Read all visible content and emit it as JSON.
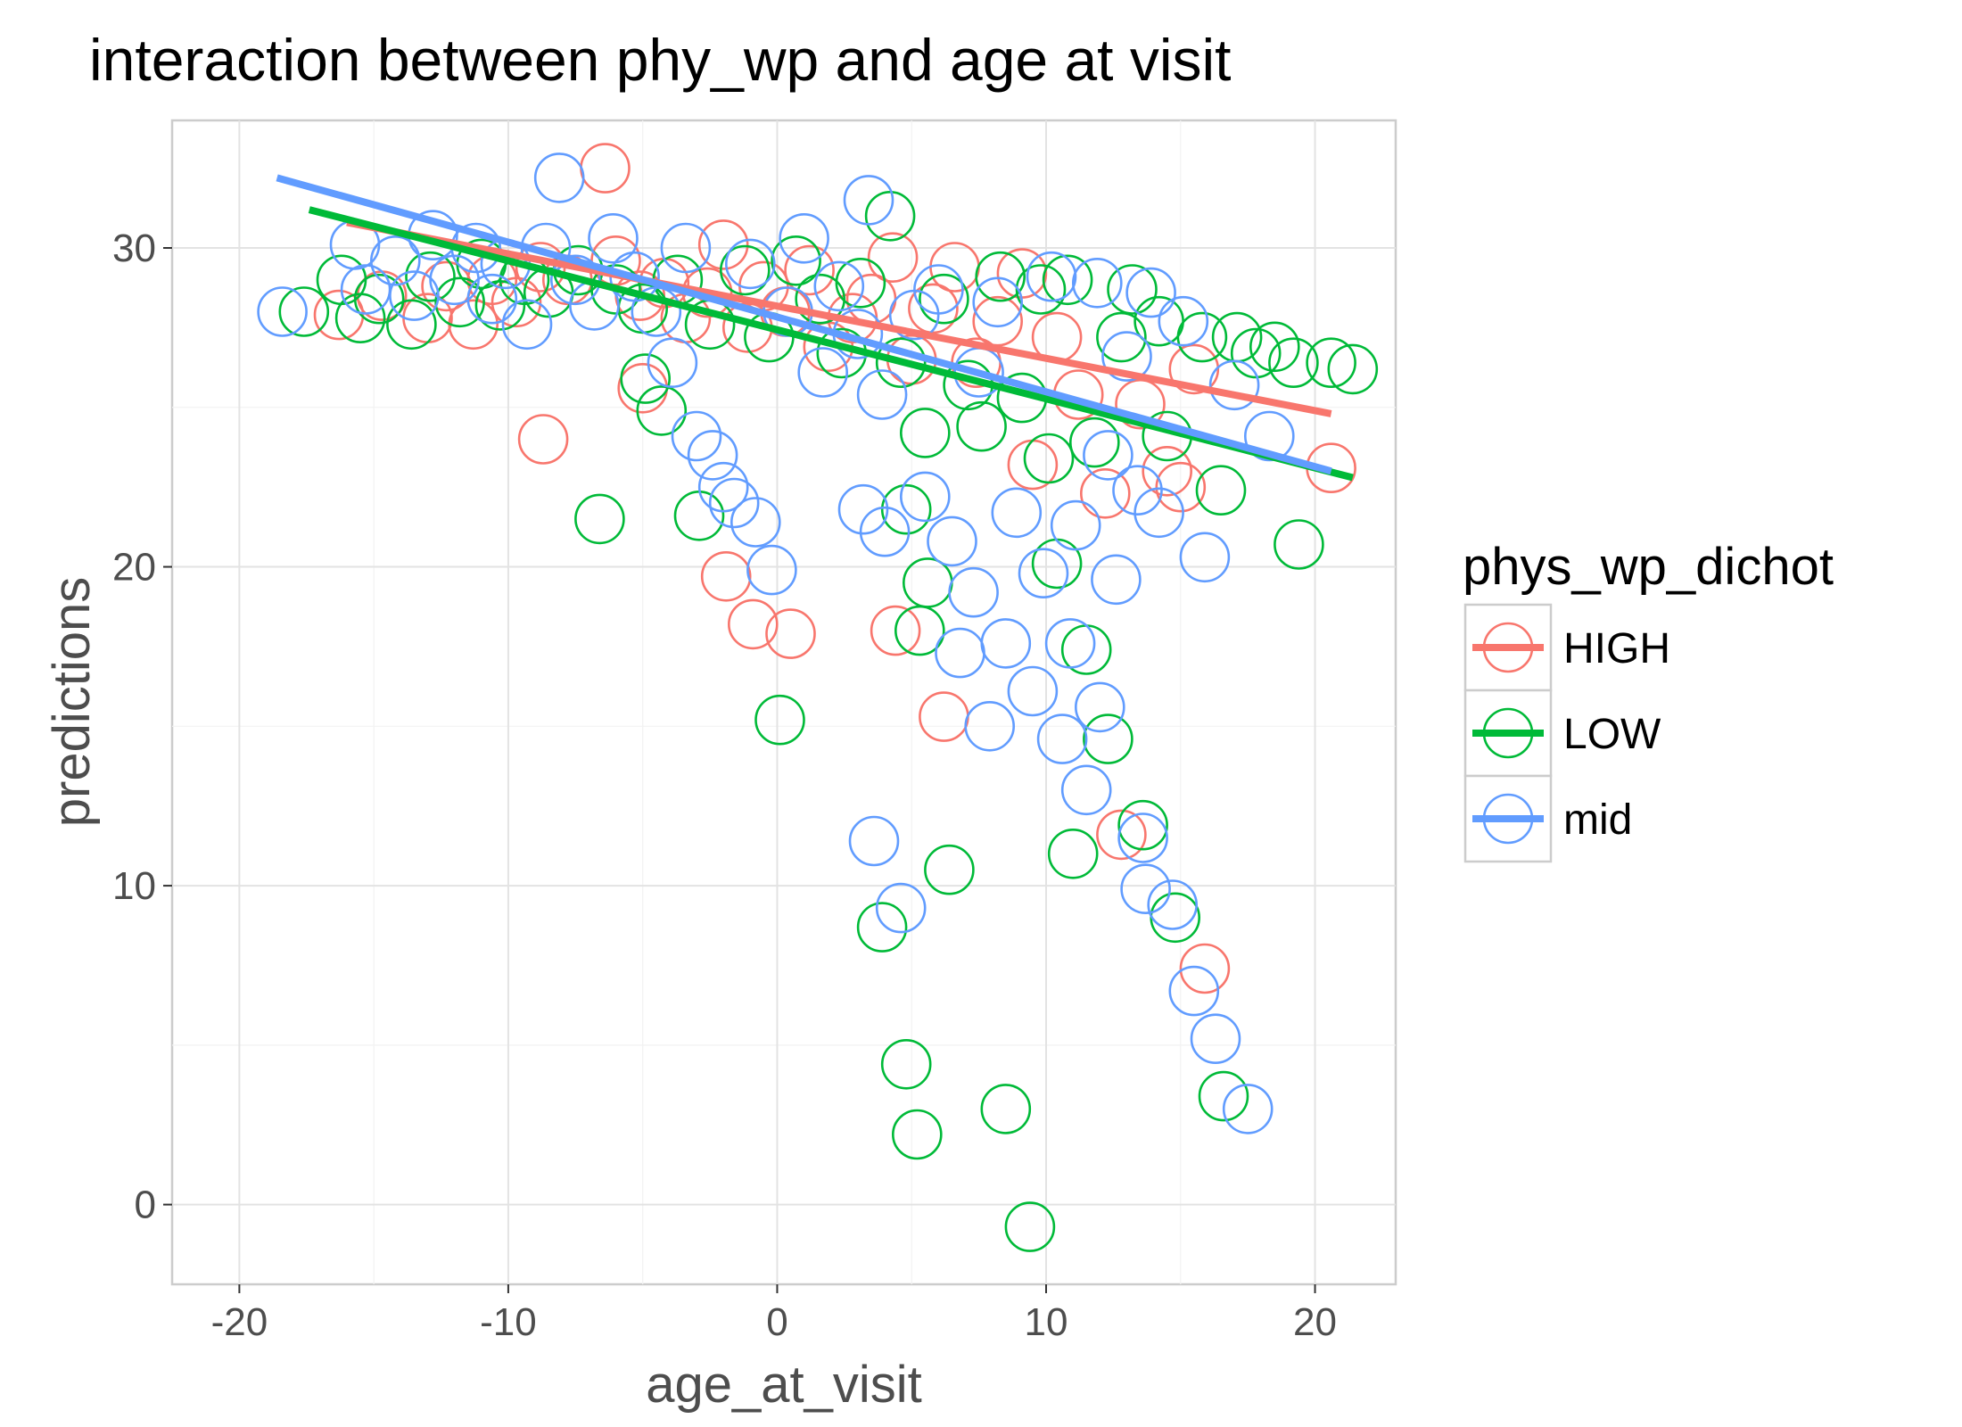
{
  "chart_data": {
    "type": "scatter",
    "title": "interaction between phy_wp and age at visit",
    "xlabel": "age_at_visit",
    "ylabel": "predictions",
    "xlim": [
      -22.5,
      23.0
    ],
    "ylim": [
      -2.5,
      34.0
    ],
    "x_ticks": [
      -20,
      -10,
      0,
      10,
      20
    ],
    "y_ticks": [
      0,
      10,
      20,
      30
    ],
    "x_tick_labels": [
      "-20",
      "-10",
      "0",
      "10",
      "20"
    ],
    "y_tick_labels": [
      "0",
      "10",
      "20",
      "30"
    ],
    "grid": true,
    "legend": {
      "title": "phys_wp_dichot",
      "position": "right"
    },
    "series": [
      {
        "name": "HIGH",
        "color": "#F8766D",
        "trend": {
          "x": [
            -16,
            20.6
          ],
          "y": [
            30.8,
            24.8
          ]
        },
        "points": [
          [
            -16.3,
            27.9
          ],
          [
            -14.7,
            28.5
          ],
          [
            -13.0,
            27.8
          ],
          [
            -12.3,
            28.8
          ],
          [
            -11.3,
            27.6
          ],
          [
            -10.6,
            29.0
          ],
          [
            -9.7,
            28.3
          ],
          [
            -8.8,
            29.4
          ],
          [
            -8.7,
            24.0
          ],
          [
            -7.8,
            29.0
          ],
          [
            -6.4,
            32.5
          ],
          [
            -6.0,
            29.6
          ],
          [
            -5.1,
            28.5
          ],
          [
            -5.0,
            25.6
          ],
          [
            -4.2,
            28.9
          ],
          [
            -3.4,
            27.8
          ],
          [
            -2.6,
            28.6
          ],
          [
            -2.0,
            30.1
          ],
          [
            -1.9,
            19.7
          ],
          [
            -1.1,
            27.5
          ],
          [
            -0.9,
            18.2
          ],
          [
            -0.5,
            28.8
          ],
          [
            0.3,
            28.0
          ],
          [
            0.5,
            17.9
          ],
          [
            1.2,
            29.3
          ],
          [
            1.9,
            26.9
          ],
          [
            2.8,
            27.8
          ],
          [
            3.5,
            28.4
          ],
          [
            4.3,
            29.7
          ],
          [
            4.4,
            18.0
          ],
          [
            5.0,
            26.5
          ],
          [
            5.8,
            28.1
          ],
          [
            6.2,
            15.3
          ],
          [
            6.6,
            29.4
          ],
          [
            7.4,
            26.4
          ],
          [
            8.2,
            27.7
          ],
          [
            9.1,
            29.2
          ],
          [
            9.5,
            23.2
          ],
          [
            10.4,
            27.2
          ],
          [
            11.2,
            25.4
          ],
          [
            12.2,
            22.3
          ],
          [
            12.8,
            11.6
          ],
          [
            13.5,
            25.1
          ],
          [
            14.5,
            23.0
          ],
          [
            15.0,
            22.5
          ],
          [
            15.5,
            26.2
          ],
          [
            15.9,
            7.4
          ],
          [
            20.6,
            23.1
          ]
        ]
      },
      {
        "name": "LOW",
        "color": "#00BA38",
        "trend": {
          "x": [
            -17.4,
            21.4
          ],
          "y": [
            31.2,
            22.8
          ]
        },
        "points": [
          [
            -17.6,
            28.0
          ],
          [
            -16.2,
            29.0
          ],
          [
            -15.5,
            27.8
          ],
          [
            -14.8,
            28.4
          ],
          [
            -13.6,
            27.6
          ],
          [
            -12.9,
            29.1
          ],
          [
            -11.8,
            28.3
          ],
          [
            -11.0,
            29.5
          ],
          [
            -10.3,
            28.2
          ],
          [
            -9.4,
            29.0
          ],
          [
            -8.5,
            28.6
          ],
          [
            -7.4,
            29.3
          ],
          [
            -6.6,
            21.5
          ],
          [
            -6.0,
            28.7
          ],
          [
            -5.0,
            28.1
          ],
          [
            -4.9,
            25.9
          ],
          [
            -4.3,
            24.9
          ],
          [
            -3.7,
            29.0
          ],
          [
            -2.9,
            21.6
          ],
          [
            -2.5,
            27.6
          ],
          [
            -1.2,
            29.3
          ],
          [
            -0.3,
            27.2
          ],
          [
            0.1,
            15.2
          ],
          [
            0.7,
            29.6
          ],
          [
            1.6,
            28.4
          ],
          [
            2.4,
            26.7
          ],
          [
            3.1,
            28.9
          ],
          [
            3.9,
            8.7
          ],
          [
            4.2,
            31.0
          ],
          [
            4.6,
            26.4
          ],
          [
            4.8,
            4.4
          ],
          [
            4.8,
            21.8
          ],
          [
            5.2,
            2.2
          ],
          [
            5.3,
            18.0
          ],
          [
            5.5,
            24.2
          ],
          [
            5.6,
            19.5
          ],
          [
            6.2,
            28.4
          ],
          [
            6.4,
            10.5
          ],
          [
            7.1,
            25.7
          ],
          [
            7.6,
            24.4
          ],
          [
            8.3,
            29.1
          ],
          [
            8.5,
            3.0
          ],
          [
            9.1,
            25.3
          ],
          [
            9.4,
            -0.7
          ],
          [
            9.8,
            28.7
          ],
          [
            10.1,
            23.4
          ],
          [
            10.4,
            20.1
          ],
          [
            10.8,
            29.0
          ],
          [
            11.0,
            11.0
          ],
          [
            11.5,
            17.4
          ],
          [
            11.8,
            23.9
          ],
          [
            12.3,
            14.6
          ],
          [
            12.8,
            27.2
          ],
          [
            13.2,
            28.7
          ],
          [
            13.6,
            11.9
          ],
          [
            14.2,
            27.7
          ],
          [
            14.5,
            24.1
          ],
          [
            14.8,
            9.0
          ],
          [
            15.8,
            27.2
          ],
          [
            16.5,
            22.4
          ],
          [
            16.6,
            3.4
          ],
          [
            17.1,
            27.2
          ],
          [
            17.8,
            26.7
          ],
          [
            18.5,
            26.9
          ],
          [
            19.2,
            26.4
          ],
          [
            19.4,
            20.7
          ],
          [
            20.6,
            26.4
          ],
          [
            21.4,
            26.2
          ]
        ]
      },
      {
        "name": "mid",
        "color": "#619CFF",
        "trend": {
          "x": [
            -18.6,
            20.6
          ],
          "y": [
            32.2,
            23.0
          ]
        },
        "points": [
          [
            -18.4,
            28.0
          ],
          [
            -15.7,
            30.1
          ],
          [
            -15.3,
            28.7
          ],
          [
            -14.2,
            29.6
          ],
          [
            -13.5,
            28.5
          ],
          [
            -12.8,
            30.4
          ],
          [
            -12.0,
            29.0
          ],
          [
            -11.2,
            30.0
          ],
          [
            -10.6,
            28.4
          ],
          [
            -10.1,
            29.5
          ],
          [
            -9.3,
            27.6
          ],
          [
            -8.6,
            30.0
          ],
          [
            -8.1,
            32.2
          ],
          [
            -7.5,
            29.0
          ],
          [
            -6.8,
            28.2
          ],
          [
            -6.1,
            30.3
          ],
          [
            -5.3,
            29.1
          ],
          [
            -4.5,
            28.0
          ],
          [
            -3.9,
            26.4
          ],
          [
            -3.4,
            30.0
          ],
          [
            -3.0,
            24.1
          ],
          [
            -2.4,
            23.5
          ],
          [
            -2.0,
            22.5
          ],
          [
            -1.6,
            22.0
          ],
          [
            -1.0,
            29.5
          ],
          [
            -0.8,
            21.4
          ],
          [
            -0.2,
            19.9
          ],
          [
            0.4,
            28.0
          ],
          [
            1.0,
            30.3
          ],
          [
            1.7,
            26.1
          ],
          [
            2.3,
            28.8
          ],
          [
            3.0,
            27.3
          ],
          [
            3.2,
            21.8
          ],
          [
            3.4,
            31.5
          ],
          [
            3.6,
            11.4
          ],
          [
            3.9,
            25.4
          ],
          [
            4.0,
            21.1
          ],
          [
            4.6,
            9.3
          ],
          [
            5.1,
            27.9
          ],
          [
            5.5,
            22.2
          ],
          [
            6.0,
            28.7
          ],
          [
            6.5,
            20.8
          ],
          [
            6.8,
            17.3
          ],
          [
            7.3,
            19.2
          ],
          [
            7.5,
            26.1
          ],
          [
            7.9,
            15.0
          ],
          [
            8.2,
            28.3
          ],
          [
            8.5,
            17.6
          ],
          [
            8.9,
            21.7
          ],
          [
            9.5,
            16.1
          ],
          [
            9.9,
            19.8
          ],
          [
            10.2,
            29.1
          ],
          [
            10.6,
            14.6
          ],
          [
            10.9,
            17.6
          ],
          [
            11.1,
            21.3
          ],
          [
            11.5,
            13.0
          ],
          [
            11.9,
            28.9
          ],
          [
            12.0,
            15.6
          ],
          [
            12.3,
            23.5
          ],
          [
            12.6,
            19.6
          ],
          [
            13.0,
            26.6
          ],
          [
            13.4,
            22.4
          ],
          [
            13.6,
            11.5
          ],
          [
            13.9,
            28.6
          ],
          [
            13.7,
            9.9
          ],
          [
            14.2,
            21.7
          ],
          [
            14.7,
            9.4
          ],
          [
            15.1,
            27.7
          ],
          [
            15.5,
            6.7
          ],
          [
            15.9,
            20.3
          ],
          [
            16.3,
            5.2
          ],
          [
            17.0,
            25.7
          ],
          [
            17.5,
            3.0
          ],
          [
            18.3,
            24.1
          ]
        ]
      }
    ]
  }
}
